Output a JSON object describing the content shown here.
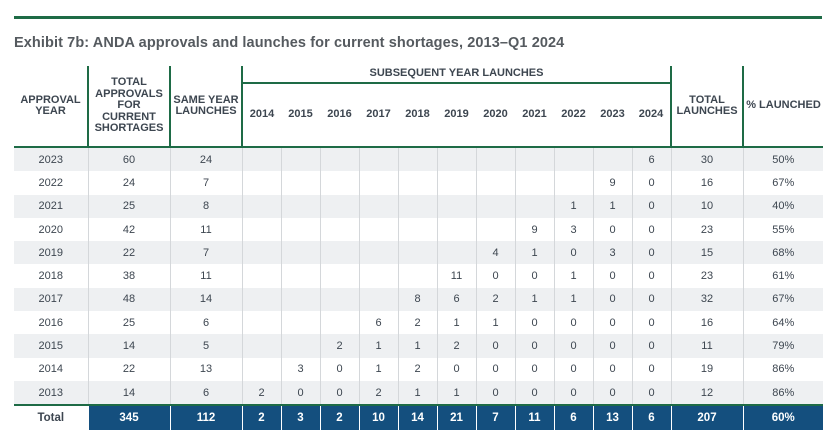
{
  "title": "Exhibit 7b: ANDA approvals and launches for current shortages, 2013–Q1 2024",
  "headers": {
    "approval_year": "APPROVAL YEAR",
    "total_approvals": "TOTAL APPROVALS FOR CURRENT SHORTAGES",
    "same_year": "SAME YEAR LAUNCHES",
    "subsequent": "SUBSEQUENT YEAR LAUNCHES",
    "years": [
      "2014",
      "2015",
      "2016",
      "2017",
      "2018",
      "2019",
      "2020",
      "2021",
      "2022",
      "2023",
      "2024"
    ],
    "total_launches": "TOTAL LAUNCHES",
    "pct_launched": "% LAUNCHED"
  },
  "rows": [
    {
      "year": "2023",
      "approvals": "60",
      "same": "24",
      "sub": [
        "",
        "",
        "",
        "",
        "",
        "",
        "",
        "",
        "",
        "",
        "6"
      ],
      "total": "30",
      "pct": "50%"
    },
    {
      "year": "2022",
      "approvals": "24",
      "same": "7",
      "sub": [
        "",
        "",
        "",
        "",
        "",
        "",
        "",
        "",
        "",
        "9",
        "0"
      ],
      "total": "16",
      "pct": "67%"
    },
    {
      "year": "2021",
      "approvals": "25",
      "same": "8",
      "sub": [
        "",
        "",
        "",
        "",
        "",
        "",
        "",
        "",
        "1",
        "1",
        "0"
      ],
      "total": "10",
      "pct": "40%"
    },
    {
      "year": "2020",
      "approvals": "42",
      "same": "11",
      "sub": [
        "",
        "",
        "",
        "",
        "",
        "",
        "",
        "9",
        "3",
        "0",
        "0"
      ],
      "total": "23",
      "pct": "55%"
    },
    {
      "year": "2019",
      "approvals": "22",
      "same": "7",
      "sub": [
        "",
        "",
        "",
        "",
        "",
        "",
        "4",
        "1",
        "0",
        "3",
        "0"
      ],
      "total": "15",
      "pct": "68%"
    },
    {
      "year": "2018",
      "approvals": "38",
      "same": "11",
      "sub": [
        "",
        "",
        "",
        "",
        "",
        "11",
        "0",
        "0",
        "1",
        "0",
        "0"
      ],
      "total": "23",
      "pct": "61%"
    },
    {
      "year": "2017",
      "approvals": "48",
      "same": "14",
      "sub": [
        "",
        "",
        "",
        "",
        "8",
        "6",
        "2",
        "1",
        "1",
        "0",
        "0"
      ],
      "total": "32",
      "pct": "67%"
    },
    {
      "year": "2016",
      "approvals": "25",
      "same": "6",
      "sub": [
        "",
        "",
        "",
        "6",
        "2",
        "1",
        "1",
        "0",
        "0",
        "0",
        "0"
      ],
      "total": "16",
      "pct": "64%"
    },
    {
      "year": "2015",
      "approvals": "14",
      "same": "5",
      "sub": [
        "",
        "",
        "2",
        "1",
        "1",
        "2",
        "0",
        "0",
        "0",
        "0",
        "0"
      ],
      "total": "11",
      "pct": "79%"
    },
    {
      "year": "2014",
      "approvals": "22",
      "same": "13",
      "sub": [
        "",
        "3",
        "0",
        "1",
        "2",
        "0",
        "0",
        "0",
        "0",
        "0",
        "0"
      ],
      "total": "19",
      "pct": "86%"
    },
    {
      "year": "2013",
      "approvals": "14",
      "same": "6",
      "sub": [
        "2",
        "0",
        "0",
        "2",
        "1",
        "1",
        "0",
        "0",
        "0",
        "0",
        "0"
      ],
      "total": "12",
      "pct": "86%"
    }
  ],
  "total_row": {
    "label": "Total",
    "approvals": "345",
    "same": "112",
    "sub": [
      "2",
      "3",
      "2",
      "10",
      "14",
      "21",
      "7",
      "11",
      "6",
      "13",
      "6"
    ],
    "total": "207",
    "pct": "60%"
  }
}
